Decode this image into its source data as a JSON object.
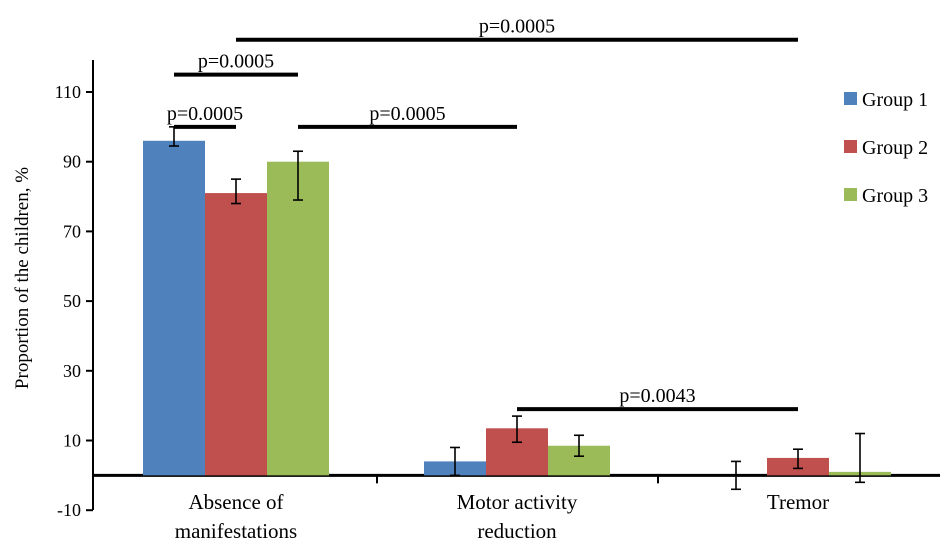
{
  "chart_data": {
    "type": "bar",
    "title": "",
    "xlabel": "",
    "ylabel": "Proportion of the children, %",
    "ylim": [
      -10,
      120
    ],
    "yticks": [
      -10,
      10,
      30,
      50,
      70,
      90,
      110
    ],
    "ytick_labels": [
      "-10",
      "10",
      "30",
      "50",
      "70",
      "90",
      "110"
    ],
    "categories": [
      "Absence of manifestations",
      "Motor activity reduction",
      "Tremor"
    ],
    "category_lines": [
      [
        "Absence of",
        "manifestations"
      ],
      [
        "Motor activity",
        "reduction"
      ],
      [
        "Tremor"
      ]
    ],
    "series": [
      {
        "name": "Group 1",
        "color": "#4f81bd",
        "values": [
          96,
          4,
          0
        ],
        "err_low": [
          1.5,
          4,
          4
        ],
        "err_high": [
          4,
          4,
          4
        ]
      },
      {
        "name": "Group 2",
        "color": "#c0504d",
        "values": [
          81,
          13.5,
          5
        ],
        "err_low": [
          3,
          4,
          3
        ],
        "err_high": [
          4,
          3.5,
          2.5
        ]
      },
      {
        "name": "Group 3",
        "color": "#9bbb59",
        "values": [
          90,
          8.5,
          1
        ],
        "err_low": [
          11,
          3,
          3
        ],
        "err_high": [
          3,
          3,
          11
        ]
      }
    ],
    "legend_position": "right",
    "grid": false,
    "annotations": [
      {
        "label": "p=0.0005",
        "from": {
          "category": 0,
          "series": 1
        },
        "to": {
          "category": 2,
          "series": 1
        },
        "y": 125
      },
      {
        "label": "p=0.0005",
        "from": {
          "category": 0,
          "series": 0
        },
        "to": {
          "category": 0,
          "series": 2
        },
        "y": 115
      },
      {
        "label": "p=0.0005",
        "from": {
          "category": 0,
          "series": 0
        },
        "to": {
          "category": 0,
          "series": 1
        },
        "y": 100
      },
      {
        "label": "p=0.0005",
        "from": {
          "category": 0,
          "series": 2
        },
        "to": {
          "category": 1,
          "series": 1
        },
        "y": 100
      },
      {
        "label": "p=0.0043",
        "from": {
          "category": 1,
          "series": 1
        },
        "to": {
          "category": 2,
          "series": 1
        },
        "y": 19
      }
    ]
  }
}
